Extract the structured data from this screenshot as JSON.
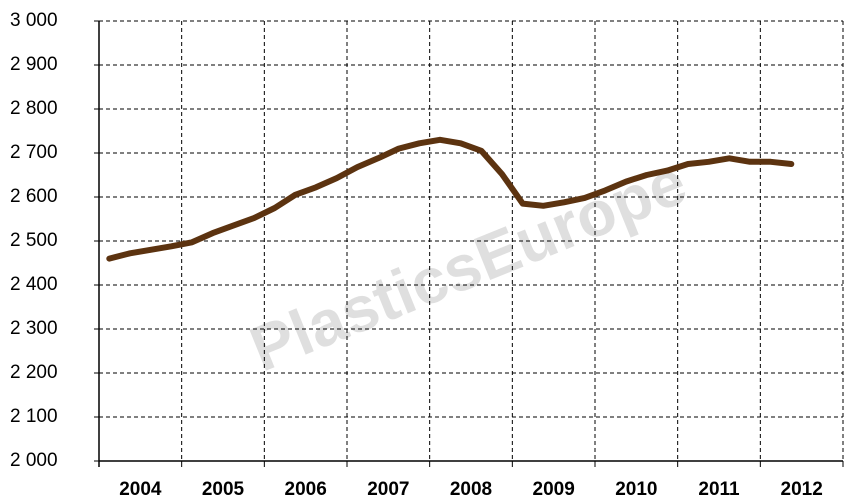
{
  "chart_data": {
    "type": "line",
    "watermark": "PlasticsEurope",
    "x": [
      2004.125,
      2004.375,
      2004.625,
      2004.875,
      2005.125,
      2005.375,
      2005.625,
      2005.875,
      2006.125,
      2006.375,
      2006.625,
      2006.875,
      2007.125,
      2007.375,
      2007.625,
      2007.875,
      2008.125,
      2008.375,
      2008.625,
      2008.875,
      2009.125,
      2009.375,
      2009.625,
      2009.875,
      2010.125,
      2010.375,
      2010.625,
      2010.875,
      2011.125,
      2011.375,
      2011.625,
      2011.875,
      2012.125,
      2012.375
    ],
    "series": [
      {
        "color": "#5c3310",
        "values": [
          2460,
          2472,
          2480,
          2488,
          2497,
          2518,
          2535,
          2552,
          2575,
          2605,
          2622,
          2643,
          2668,
          2688,
          2710,
          2722,
          2730,
          2722,
          2705,
          2652,
          2585,
          2580,
          2588,
          2598,
          2615,
          2635,
          2650,
          2660,
          2675,
          2680,
          2688,
          2680,
          2680,
          2675
        ]
      }
    ],
    "xlim": [
      2004,
      2013
    ],
    "xticks": [
      {
        "value": 2004.5,
        "label": "2004"
      },
      {
        "value": 2005.5,
        "label": "2005"
      },
      {
        "value": 2006.5,
        "label": "2006"
      },
      {
        "value": 2007.5,
        "label": "2007"
      },
      {
        "value": 2008.5,
        "label": "2008"
      },
      {
        "value": 2009.5,
        "label": "2009"
      },
      {
        "value": 2010.5,
        "label": "2010"
      },
      {
        "value": 2011.5,
        "label": "2011"
      },
      {
        "value": 2012.5,
        "label": "2012"
      }
    ],
    "xgrid": [
      2005,
      2006,
      2007,
      2008,
      2009,
      2010,
      2011,
      2012,
      2013
    ],
    "ylim": [
      2000,
      3000
    ],
    "yticks": [
      {
        "value": 2000,
        "label": "2 000"
      },
      {
        "value": 2100,
        "label": "2 100"
      },
      {
        "value": 2200,
        "label": "2 200"
      },
      {
        "value": 2300,
        "label": "2 300"
      },
      {
        "value": 2400,
        "label": "2 400"
      },
      {
        "value": 2500,
        "label": "2 500"
      },
      {
        "value": 2600,
        "label": "2 600"
      },
      {
        "value": 2700,
        "label": "2 700"
      },
      {
        "value": 2800,
        "label": "2 800"
      },
      {
        "value": 2900,
        "label": "2 900"
      },
      {
        "value": 3000,
        "label": "3 000"
      }
    ],
    "grid": true
  }
}
